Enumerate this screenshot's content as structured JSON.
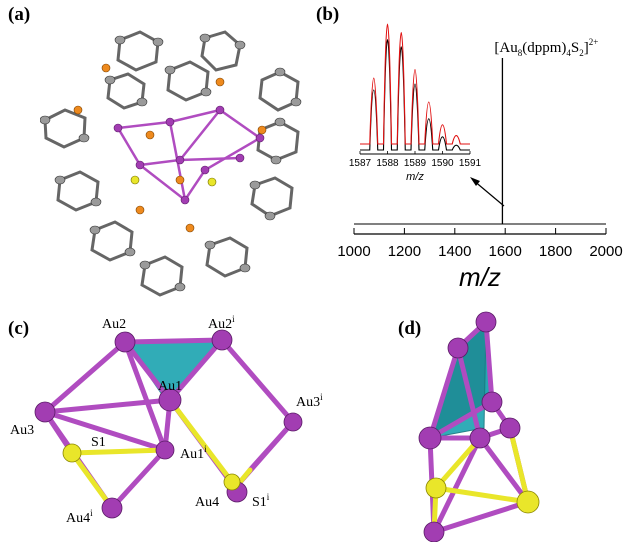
{
  "panels": {
    "a": {
      "label": "(a)"
    },
    "b": {
      "label": "(b)"
    },
    "c": {
      "label": "(c)"
    },
    "d": {
      "label": "(d)"
    }
  },
  "colors": {
    "gold_atom": "#a23db2",
    "gold_bond": "#b04cc0",
    "phosphorus": "#ee8a1e",
    "sulfur": "#e9e62a",
    "carbon": "#8a8a8a",
    "tetrahedron": "#27a8b4",
    "spectrum_exp": "#000000",
    "spectrum_sim": "#e01010"
  },
  "chart_data": {
    "type": "line",
    "main": {
      "xlim": [
        1000,
        2000
      ],
      "xticks": [
        "1000",
        "1200",
        "1400",
        "1600",
        "1800",
        "2000"
      ],
      "xlabel": "m/z",
      "peak": {
        "x": 1589,
        "y": 1.0
      },
      "annotation": {
        "base": "[Au",
        "sub1": "8",
        "mid": "(dppm)",
        "sub2": "4",
        "s": "S",
        "sub3": "2",
        "charge": "2+"
      }
    },
    "inset": {
      "xlim": [
        1587,
        1591
      ],
      "xticks": [
        "1587",
        "1588",
        "1589",
        "1590",
        "1591"
      ],
      "xlabel": "m/z",
      "series": [
        {
          "color": "#000000",
          "x": [
            1587.5,
            1588.0,
            1588.5,
            1589.0,
            1589.5,
            1590.0,
            1590.5
          ],
          "values": [
            0.5,
            0.92,
            0.86,
            0.55,
            0.26,
            0.11,
            0.04
          ]
        },
        {
          "color": "#e01010",
          "x": [
            1587.5,
            1588.0,
            1588.5,
            1589.0,
            1589.5,
            1590.0,
            1590.5
          ],
          "values": [
            0.55,
            1.0,
            0.93,
            0.62,
            0.35,
            0.16,
            0.07
          ]
        }
      ]
    }
  },
  "structure_c": {
    "atoms": {
      "au2": "Au2",
      "au2i": "Au2",
      "au2i_sup": "i",
      "au1": "Au1",
      "au1i": "Au1",
      "au1i_sup": "i",
      "au3": "Au3",
      "au3i": "Au3",
      "au3i_sup": "i",
      "s1": "S1",
      "s1i": "S1",
      "s1i_sup": "i",
      "au4": "Au4",
      "au4i": "Au4",
      "au4i_sup": "i"
    }
  }
}
